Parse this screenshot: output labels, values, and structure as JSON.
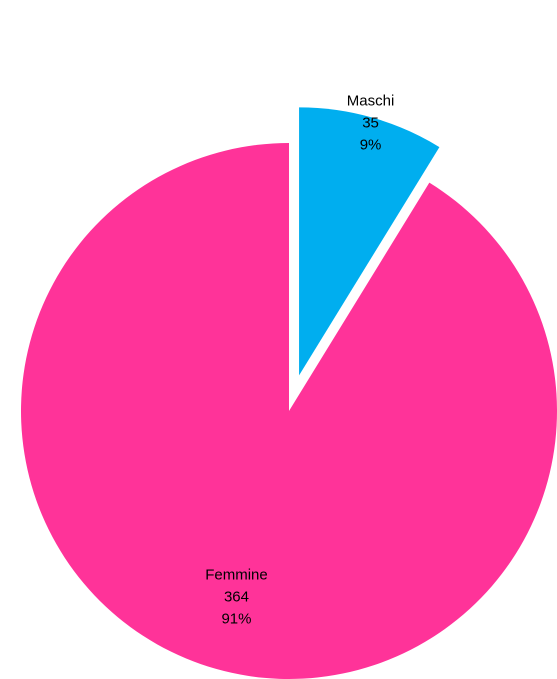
{
  "chart_data": {
    "type": "pie",
    "exploded": true,
    "slices": [
      {
        "label": "Maschi",
        "value": 35,
        "percent": "9%",
        "color": "#00AEEF"
      },
      {
        "label": "Femmine",
        "value": 364,
        "percent": "91%",
        "color": "#FF3399"
      }
    ]
  }
}
